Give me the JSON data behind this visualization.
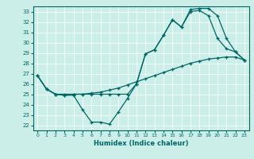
{
  "xlabel": "Humidex (Indice chaleur)",
  "bg_color": "#cceee8",
  "line_color": "#006666",
  "grid_color": "#ffffff",
  "xlim": [
    -0.5,
    23.5
  ],
  "ylim": [
    21.5,
    33.5
  ],
  "xticks": [
    0,
    1,
    2,
    3,
    4,
    5,
    6,
    7,
    8,
    9,
    10,
    11,
    12,
    13,
    14,
    15,
    16,
    17,
    18,
    19,
    20,
    21,
    22,
    23
  ],
  "yticks": [
    22,
    23,
    24,
    25,
    26,
    27,
    28,
    29,
    30,
    31,
    32,
    33
  ],
  "line1_x": [
    0,
    1,
    2,
    3,
    4,
    5,
    6,
    7,
    8,
    9,
    10,
    11,
    12,
    13,
    14,
    15,
    16,
    17,
    18,
    19,
    20,
    21,
    22,
    23
  ],
  "line1_y": [
    26.8,
    25.5,
    25.0,
    25.0,
    25.0,
    25.0,
    25.1,
    25.2,
    25.4,
    25.6,
    25.9,
    26.2,
    26.5,
    26.8,
    27.1,
    27.4,
    27.7,
    28.0,
    28.2,
    28.4,
    28.5,
    28.6,
    28.6,
    28.3
  ],
  "line2_x": [
    0,
    1,
    2,
    3,
    4,
    5,
    6,
    7,
    8,
    9,
    10,
    11,
    12,
    13,
    14,
    15,
    16,
    17,
    18,
    19,
    20,
    21,
    22,
    23
  ],
  "line2_y": [
    26.8,
    25.5,
    25.0,
    24.9,
    24.9,
    23.5,
    22.3,
    22.3,
    22.1,
    23.3,
    24.6,
    26.0,
    28.9,
    29.3,
    30.7,
    32.2,
    31.5,
    33.0,
    33.1,
    32.6,
    30.4,
    29.4,
    29.1,
    28.3
  ],
  "line3_x": [
    0,
    1,
    2,
    3,
    4,
    5,
    6,
    7,
    8,
    9,
    10,
    11,
    12,
    13,
    14,
    15,
    16,
    17,
    18,
    19,
    20,
    21,
    22,
    23
  ],
  "line3_y": [
    26.8,
    25.5,
    25.0,
    24.9,
    25.0,
    25.0,
    25.0,
    25.0,
    25.0,
    25.0,
    25.0,
    26.0,
    28.9,
    29.3,
    30.7,
    32.2,
    31.5,
    33.2,
    33.3,
    33.3,
    32.6,
    30.4,
    29.1,
    28.3
  ],
  "figsize": [
    3.2,
    2.0
  ],
  "dpi": 100
}
